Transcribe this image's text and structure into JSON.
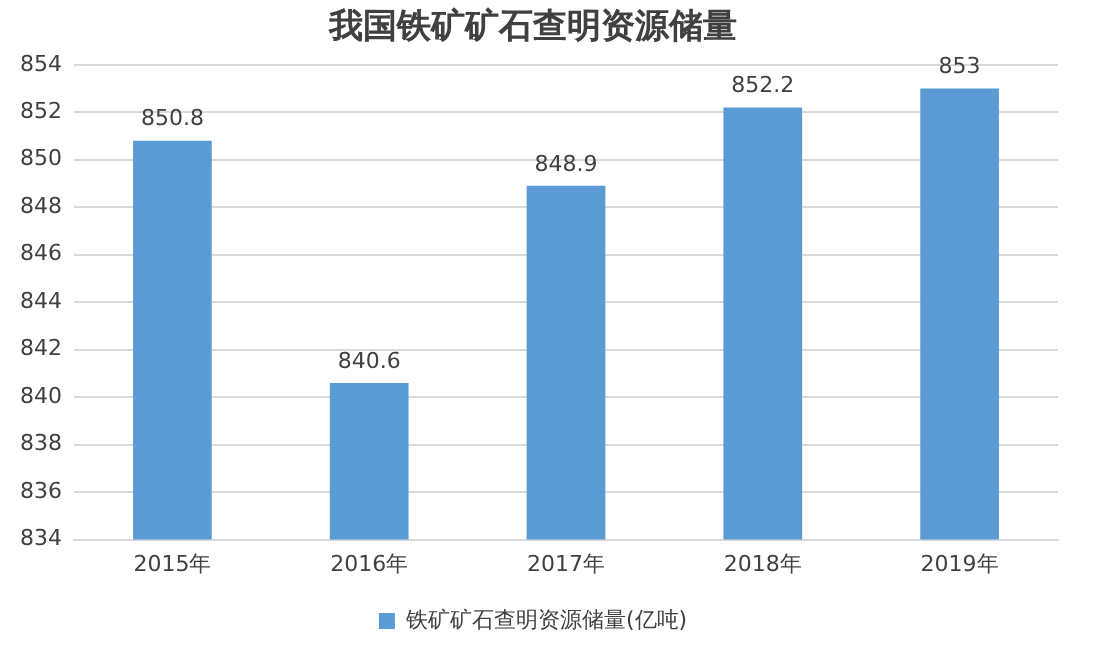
{
  "chart_data": {
    "type": "bar",
    "title": "我国铁矿矿石查明资源储量",
    "categories": [
      "2015年",
      "2016年",
      "2017年",
      "2018年",
      "2019年"
    ],
    "series": [
      {
        "name": "铁矿矿石查明资源储量(亿吨)",
        "color": "#5b9bd5",
        "values": [
          850.8,
          840.6,
          848.9,
          852.2,
          853
        ]
      }
    ],
    "ylim": [
      834,
      854
    ],
    "yticks": [
      834,
      836,
      838,
      840,
      842,
      844,
      846,
      848,
      850,
      852,
      854
    ],
    "grid": "y",
    "legend": "bottom",
    "data_labels": true
  }
}
